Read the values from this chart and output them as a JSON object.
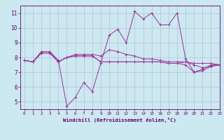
{
  "background_color": "#cce8f0",
  "grid_color": "#b0b8cc",
  "line_color": "#993399",
  "xlabel": "Windchill (Refroidissement éolien,°C)",
  "xlim": [
    -0.5,
    23
  ],
  "ylim": [
    4.5,
    11.5
  ],
  "yticks": [
    5,
    6,
    7,
    8,
    9,
    10,
    11
  ],
  "xticks": [
    0,
    1,
    2,
    3,
    4,
    5,
    6,
    7,
    8,
    9,
    10,
    11,
    12,
    13,
    14,
    15,
    16,
    17,
    18,
    19,
    20,
    21,
    22,
    23
  ],
  "series": [
    [
      7.8,
      7.7,
      8.4,
      8.4,
      7.8,
      4.7,
      5.3,
      6.3,
      5.7,
      7.6,
      9.5,
      9.9,
      9.0,
      11.1,
      10.6,
      11.0,
      10.2,
      10.2,
      11.0,
      7.9,
      7.0,
      7.2,
      7.5,
      7.5
    ],
    [
      7.8,
      7.7,
      8.3,
      8.3,
      7.7,
      8.0,
      8.2,
      8.2,
      8.2,
      8.1,
      8.5,
      8.4,
      8.2,
      8.1,
      7.9,
      7.9,
      7.8,
      7.7,
      7.7,
      7.7,
      7.6,
      7.6,
      7.6,
      7.5
    ],
    [
      7.8,
      7.7,
      8.3,
      8.3,
      7.7,
      8.0,
      8.1,
      8.1,
      8.1,
      7.7,
      7.7,
      7.7,
      7.7,
      7.7,
      7.7,
      7.7,
      7.7,
      7.6,
      7.6,
      7.7,
      7.5,
      7.3,
      7.4,
      7.5
    ],
    [
      7.8,
      7.7,
      8.3,
      8.3,
      7.7,
      8.0,
      8.1,
      8.1,
      8.1,
      7.7,
      7.7,
      7.7,
      7.7,
      7.7,
      7.7,
      7.7,
      7.7,
      7.6,
      7.6,
      7.5,
      7.0,
      7.1,
      7.4,
      7.5
    ]
  ],
  "figsize": [
    3.2,
    2.0
  ],
  "dpi": 100
}
